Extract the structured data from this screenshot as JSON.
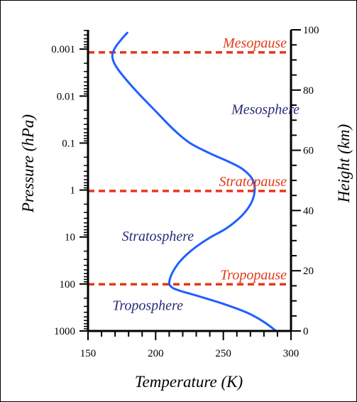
{
  "chart_data": {
    "type": "line",
    "title": "",
    "xlabel": "Temperature (K)",
    "ylabel_left": "Pressure (hPa)",
    "ylabel_right": "Height (km)",
    "xlim": [
      150,
      300
    ],
    "xticks": [
      150,
      200,
      250,
      300
    ],
    "ylim_height_km": [
      0,
      100
    ],
    "left_ticks": [
      {
        "label": "1000",
        "pressure": 1000,
        "height": 0
      },
      {
        "label": "100",
        "pressure": 100,
        "height": 15.6
      },
      {
        "label": "10",
        "pressure": 10,
        "height": 31.2
      },
      {
        "label": "1",
        "pressure": 1,
        "height": 46.8
      },
      {
        "label": "0.1",
        "pressure": 0.1,
        "height": 62.4
      },
      {
        "label": "0.01",
        "pressure": 0.01,
        "height": 78
      },
      {
        "label": "0.001",
        "pressure": 0.001,
        "height": 93.6
      }
    ],
    "right_ticks": [
      0,
      20,
      40,
      60,
      80,
      100
    ],
    "series": [
      {
        "color": "#1f5fff",
        "points": [
          [
            289,
            0
          ],
          [
            280,
            3
          ],
          [
            268,
            6
          ],
          [
            250,
            9
          ],
          [
            232,
            11.5
          ],
          [
            217,
            13.5
          ],
          [
            212,
            14.5
          ],
          [
            210,
            16
          ],
          [
            212,
            19
          ],
          [
            216,
            22
          ],
          [
            222,
            25
          ],
          [
            230,
            28
          ],
          [
            240,
            31
          ],
          [
            252,
            34
          ],
          [
            263,
            38
          ],
          [
            270,
            42
          ],
          [
            273,
            46
          ],
          [
            272,
            50
          ],
          [
            265,
            53.5
          ],
          [
            255,
            56
          ],
          [
            240,
            59
          ],
          [
            225,
            62.5
          ],
          [
            213,
            67
          ],
          [
            200,
            73
          ],
          [
            185,
            80
          ],
          [
            172,
            87
          ],
          [
            168,
            91
          ],
          [
            170,
            94
          ],
          [
            175,
            97
          ],
          [
            179,
            99
          ]
        ]
      }
    ],
    "reference_lines": [
      {
        "label": "Mesopause",
        "height": 92.5,
        "color": "#e23a1a"
      },
      {
        "label": "Stratopause",
        "height": 46.5,
        "color": "#e23a1a"
      },
      {
        "label": "Tropopause",
        "height": 15.5,
        "color": "#e23a1a"
      }
    ],
    "region_labels": [
      {
        "label": "Mesosphere",
        "temperature": 256,
        "height": 72,
        "color": "#2b2a7a"
      },
      {
        "label": "Stratosphere",
        "temperature": 175,
        "height": 30,
        "color": "#2b2a7a"
      },
      {
        "label": "Troposphere",
        "temperature": 168,
        "height": 7,
        "color": "#2b2a7a"
      }
    ]
  }
}
